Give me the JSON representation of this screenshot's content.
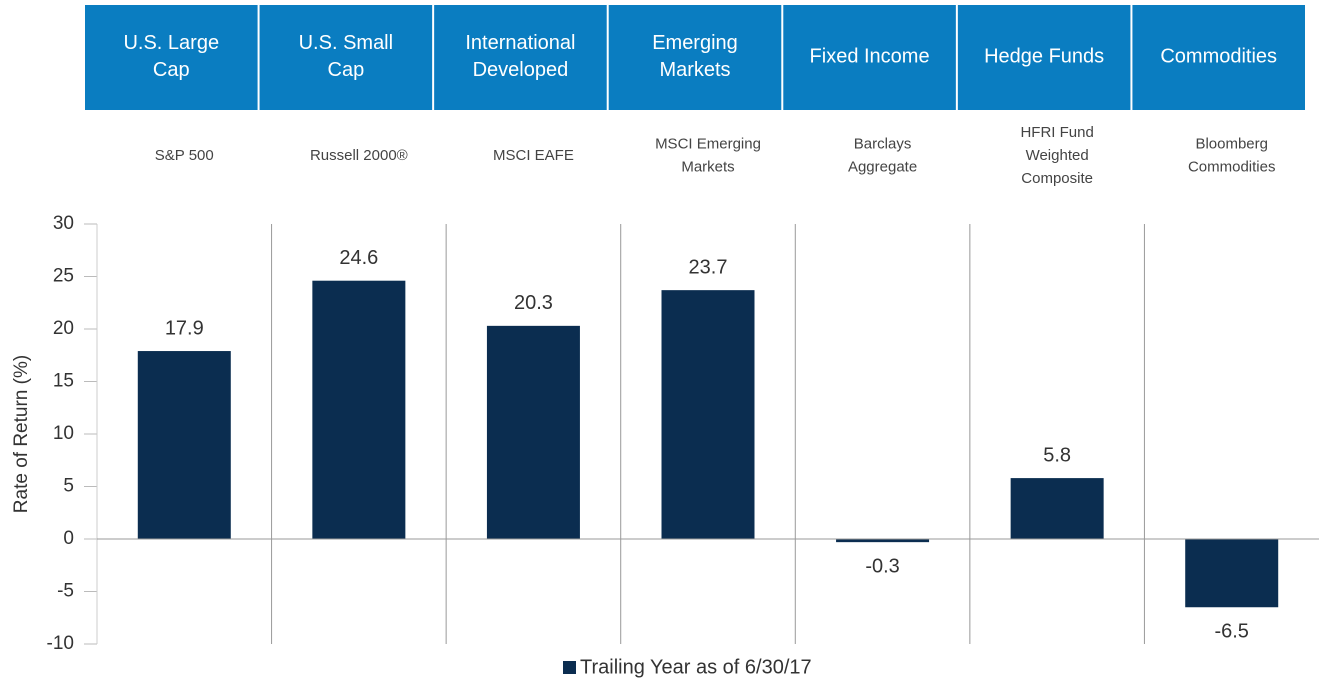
{
  "chart_data": {
    "type": "bar",
    "categories": [
      [
        "U.S. Large",
        "Cap"
      ],
      [
        "U.S. Small",
        "Cap"
      ],
      [
        "International",
        "Developed"
      ],
      [
        "Emerging",
        "Markets"
      ],
      [
        "Fixed Income"
      ],
      [
        "Hedge Funds"
      ],
      [
        "Commodities"
      ]
    ],
    "benchmarks": [
      [
        "S&P 500"
      ],
      [
        "Russell 2000®"
      ],
      [
        "MSCI EAFE"
      ],
      [
        "MSCI Emerging",
        "Markets"
      ],
      [
        "Barclays",
        "Aggregate"
      ],
      [
        "HFRI Fund",
        "Weighted",
        "Composite"
      ],
      [
        "Bloomberg",
        "Commodities"
      ]
    ],
    "series": [
      {
        "name": "Trailing Year as of 6/30/17",
        "color": "#0b2d50",
        "values": [
          17.9,
          24.6,
          20.3,
          23.7,
          -0.3,
          5.8,
          -6.5
        ]
      }
    ],
    "ylabel": "Rate of Return (%)",
    "ylim": [
      -10,
      30
    ],
    "yticks": [
      -10,
      -5,
      0,
      5,
      10,
      15,
      20,
      25,
      30
    ],
    "header_color": "#0a7dc1",
    "legend": "bottom"
  }
}
